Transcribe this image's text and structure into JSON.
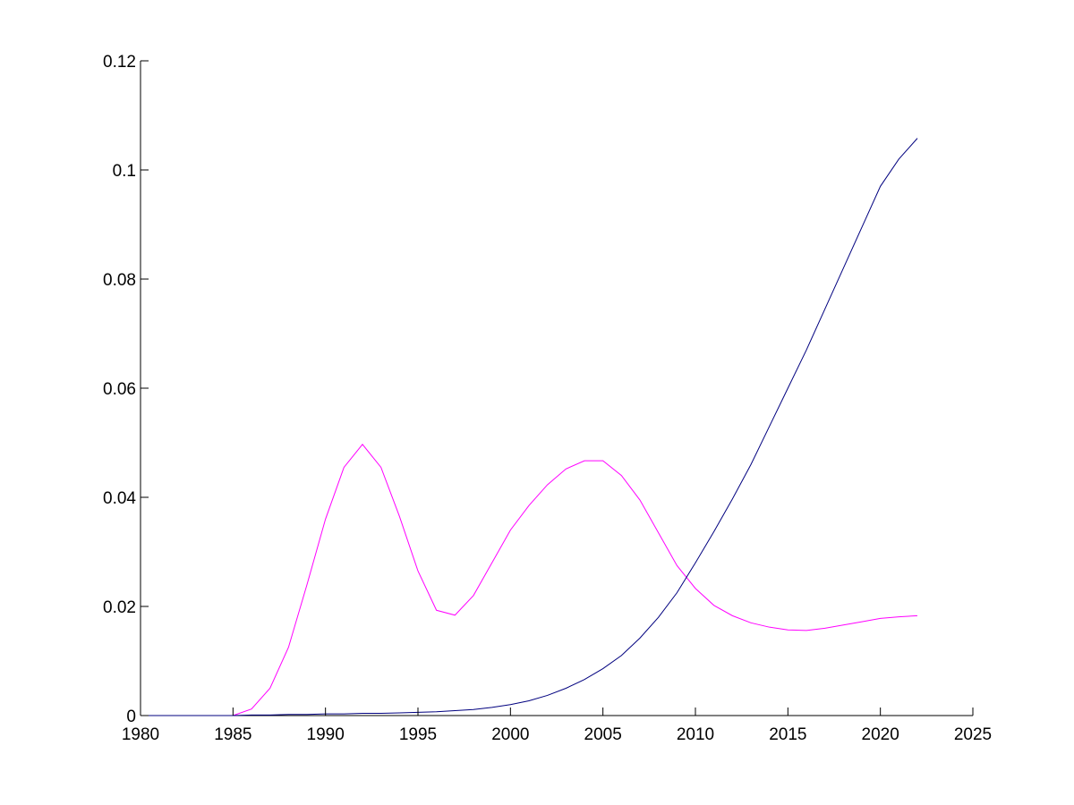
{
  "chart_data": {
    "type": "line",
    "title": "",
    "xlabel": "",
    "ylabel": "",
    "xlim": [
      1980,
      2025
    ],
    "ylim": [
      0,
      0.12
    ],
    "xticks": [
      1980,
      1985,
      1990,
      1995,
      2000,
      2005,
      2010,
      2015,
      2020,
      2025
    ],
    "yticks": [
      0,
      0.02,
      0.04,
      0.06,
      0.08,
      0.1,
      0.12
    ],
    "xtick_labels": [
      "1980",
      "1985",
      "1990",
      "1995",
      "2000",
      "2005",
      "2010",
      "2015",
      "2020",
      "2025"
    ],
    "ytick_labels": [
      "0",
      "0.02",
      "0.04",
      "0.06",
      "0.08",
      "0.1",
      "0.12"
    ],
    "grid": false,
    "legend": "none",
    "series": [
      {
        "color": "#ff00ff",
        "x": [
          1980,
          1981,
          1982,
          1983,
          1984,
          1985,
          1986,
          1987,
          1988,
          1989,
          1990,
          1991,
          1992,
          1993,
          1994,
          1995,
          1996,
          1997,
          1998,
          1999,
          2000,
          2001,
          2002,
          2003,
          2004,
          2005,
          2006,
          2007,
          2008,
          2009,
          2010,
          2011,
          2012,
          2013,
          2014,
          2015,
          2016,
          2017,
          2018,
          2019,
          2020,
          2021,
          2022
        ],
        "values": [
          0,
          0,
          0,
          0,
          0,
          0,
          0.0012,
          0.005,
          0.0125,
          0.024,
          0.036,
          0.0455,
          0.0497,
          0.0455,
          0.0365,
          0.0265,
          0.0193,
          0.0184,
          0.022,
          0.028,
          0.034,
          0.0385,
          0.0423,
          0.0452,
          0.0467,
          0.0467,
          0.044,
          0.0395,
          0.0335,
          0.0275,
          0.0233,
          0.0202,
          0.0183,
          0.017,
          0.0162,
          0.0157,
          0.0156,
          0.016,
          0.0166,
          0.0172,
          0.0178,
          0.0181,
          0.0183
        ]
      },
      {
        "color": "#00007f",
        "x": [
          1980,
          1981,
          1982,
          1983,
          1984,
          1985,
          1986,
          1987,
          1988,
          1989,
          1990,
          1991,
          1992,
          1993,
          1994,
          1995,
          1996,
          1997,
          1998,
          1999,
          2000,
          2001,
          2002,
          2003,
          2004,
          2005,
          2006,
          2007,
          2008,
          2009,
          2010,
          2011,
          2012,
          2013,
          2014,
          2015,
          2016,
          2017,
          2018,
          2019,
          2020,
          2021,
          2022
        ],
        "values": [
          0,
          0,
          0,
          0,
          0,
          0,
          0.0001,
          0.0001,
          0.0002,
          0.0002,
          0.0003,
          0.0003,
          0.0004,
          0.0004,
          0.0005,
          0.0006,
          0.0007,
          0.0009,
          0.0011,
          0.0015,
          0.002,
          0.0027,
          0.0037,
          0.005,
          0.0066,
          0.0086,
          0.011,
          0.0142,
          0.018,
          0.0225,
          0.028,
          0.0337,
          0.0397,
          0.046,
          0.053,
          0.06,
          0.067,
          0.0745,
          0.082,
          0.0895,
          0.097,
          0.102,
          0.1058
        ]
      }
    ]
  }
}
